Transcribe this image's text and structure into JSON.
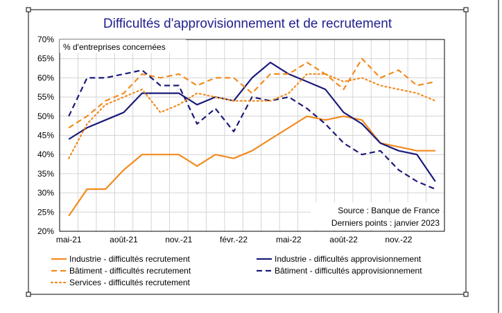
{
  "chart_data": {
    "type": "line",
    "title": "Difficultés d'approvisionnement et de recrutement",
    "ylabel": "% d'entreprises concernées",
    "ylim": [
      20,
      70
    ],
    "yticks": [
      "20%",
      "25%",
      "30%",
      "35%",
      "40%",
      "45%",
      "50%",
      "55%",
      "60%",
      "65%",
      "70%"
    ],
    "x": [
      "mai-21",
      "juin-21",
      "juil.-21",
      "août-21",
      "sept.-21",
      "oct.-21",
      "nov.-21",
      "déc.-21",
      "janv.-22",
      "févr.-22",
      "mars-22",
      "avr.-22",
      "mai-22",
      "juin-22",
      "juil.-22",
      "août-22",
      "sept.-22",
      "oct.-22",
      "nov.-22",
      "déc.-22",
      "janv.-23"
    ],
    "xtick_labels": [
      "mai-21",
      "août-21",
      "nov.-21",
      "févr.-22",
      "mai-22",
      "août-22",
      "nov.-22"
    ],
    "grid": true,
    "legend_placement": "bottom",
    "source_note": "Source : Banque de France",
    "last_point_note": "Derniers points : janvier 2023",
    "series": [
      {
        "name": "Industrie - difficultés recrutement",
        "color": "#f28a1e",
        "style": "solid",
        "values": [
          24,
          31,
          31,
          36,
          40,
          40,
          40,
          37,
          40,
          39,
          41,
          44,
          47,
          50,
          49,
          50,
          49,
          43,
          42,
          41,
          41
        ]
      },
      {
        "name": "Industrie - difficultés approvisionnement",
        "color": "#1a1a7a",
        "style": "solid",
        "values": [
          44,
          47,
          49,
          51,
          56,
          56,
          56,
          53,
          55,
          54,
          60,
          64,
          61,
          59,
          57,
          51,
          48,
          43,
          41,
          40,
          33
        ]
      },
      {
        "name": "Bâtiment - difficultés recrutement",
        "color": "#f28a1e",
        "style": "dashed",
        "values": [
          47,
          50,
          54,
          56,
          61,
          60,
          61,
          58,
          60,
          60,
          56,
          61,
          61,
          64,
          61,
          57,
          65,
          60,
          62,
          58,
          59
        ]
      },
      {
        "name": "Bâtiment - difficultés approvisionnement",
        "color": "#1a1a7a",
        "style": "dashed",
        "values": [
          50,
          60,
          60,
          61,
          62,
          58,
          58,
          48,
          52,
          46,
          55,
          54,
          55,
          52,
          48,
          43,
          40,
          41,
          36,
          33,
          31
        ]
      },
      {
        "name": "Services - difficultés recrutement",
        "color": "#f28a1e",
        "style": "dotted",
        "values": [
          39,
          48,
          53,
          55,
          57,
          51,
          53,
          56,
          55,
          54,
          54,
          54,
          56,
          61,
          61,
          59,
          60,
          58,
          57,
          56,
          54
        ]
      }
    ]
  }
}
